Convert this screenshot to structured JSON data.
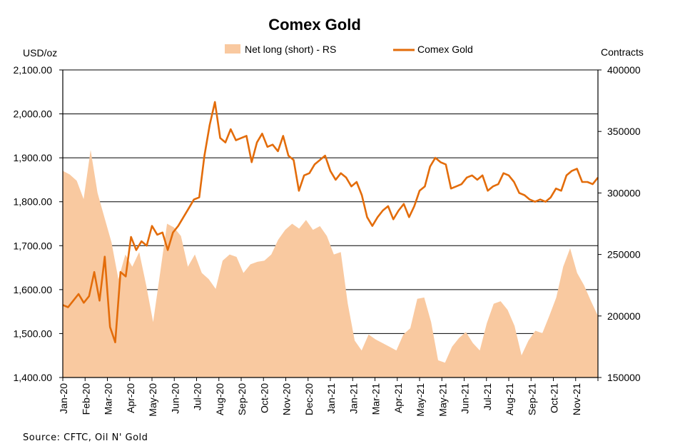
{
  "chart_data": {
    "type": "line",
    "title": "Comex Gold",
    "left_axis_unit": "USD/oz",
    "right_axis_unit": "Contracts",
    "source": "Source: CFTC, Oil N' Gold",
    "y_left": {
      "min": 1400,
      "max": 2100,
      "ticks": [
        "1,400.00",
        "1,500.00",
        "1,600.00",
        "1,700.00",
        "1,800.00",
        "1,900.00",
        "2,000.00",
        "2,100.00"
      ]
    },
    "y_right": {
      "min": 150000,
      "max": 400000,
      "ticks": [
        "150000",
        "200000",
        "250000",
        "300000",
        "350000",
        "400000"
      ]
    },
    "grid": true,
    "x_labels": [
      "Jan-20",
      "Feb-20",
      "Mar-20",
      "Apr-20",
      "May-20",
      "Jun-20",
      "Jul-20",
      "Aug-20",
      "Sep-20",
      "Oct-20",
      "Nov-20",
      "Dec-20",
      "Jan-21",
      "Jan-21",
      "Mar-21",
      "Apr-21",
      "May-21",
      "May-21",
      "Jun-21",
      "Jul-21",
      "Aug-21",
      "Sep-21",
      "Oct-21",
      "Nov-21"
    ],
    "series": [
      {
        "name": "Net long (short) - RS",
        "kind": "area",
        "axis": "right",
        "color": "#F9C9A0",
        "values": [
          318000,
          315000,
          310000,
          295000,
          335000,
          300000,
          280000,
          260000,
          230000,
          250000,
          240000,
          252000,
          225000,
          195000,
          235000,
          275000,
          272000,
          265000,
          240000,
          250000,
          235000,
          230000,
          222000,
          245000,
          250000,
          248000,
          235000,
          242000,
          244000,
          245000,
          250000,
          262000,
          270000,
          275000,
          271000,
          278000,
          270000,
          273000,
          265000,
          250000,
          252000,
          210000,
          180000,
          172000,
          185000,
          181000,
          178000,
          175000,
          172000,
          185000,
          190000,
          214000,
          215000,
          195000,
          164000,
          162000,
          175000,
          182000,
          187000,
          178000,
          172000,
          194000,
          210000,
          212000,
          205000,
          192000,
          168000,
          180000,
          188000,
          186000,
          200000,
          215000,
          240000,
          255000,
          235000,
          225000,
          212000,
          200000
        ]
      },
      {
        "name": "Comex Gold",
        "kind": "line",
        "axis": "left",
        "color": "#E36C0A",
        "values": [
          1565,
          1560,
          1575,
          1590,
          1570,
          1585,
          1640,
          1575,
          1675,
          1515,
          1480,
          1640,
          1630,
          1720,
          1690,
          1710,
          1700,
          1745,
          1725,
          1730,
          1690,
          1730,
          1745,
          1765,
          1785,
          1805,
          1810,
          1905,
          1975,
          2027,
          1945,
          1935,
          1965,
          1940,
          1945,
          1950,
          1890,
          1935,
          1955,
          1925,
          1930,
          1915,
          1950,
          1905,
          1895,
          1825,
          1860,
          1865,
          1885,
          1895,
          1905,
          1870,
          1850,
          1865,
          1855,
          1835,
          1845,
          1815,
          1765,
          1745,
          1765,
          1780,
          1790,
          1760,
          1780,
          1795,
          1765,
          1790,
          1825,
          1835,
          1880,
          1900,
          1890,
          1885,
          1830,
          1835,
          1840,
          1855,
          1860,
          1850,
          1860,
          1825,
          1835,
          1840,
          1865,
          1860,
          1845,
          1820,
          1815,
          1805,
          1800,
          1805,
          1800,
          1810,
          1830,
          1825,
          1860,
          1870,
          1875,
          1845,
          1845,
          1840,
          1855
        ]
      }
    ]
  }
}
